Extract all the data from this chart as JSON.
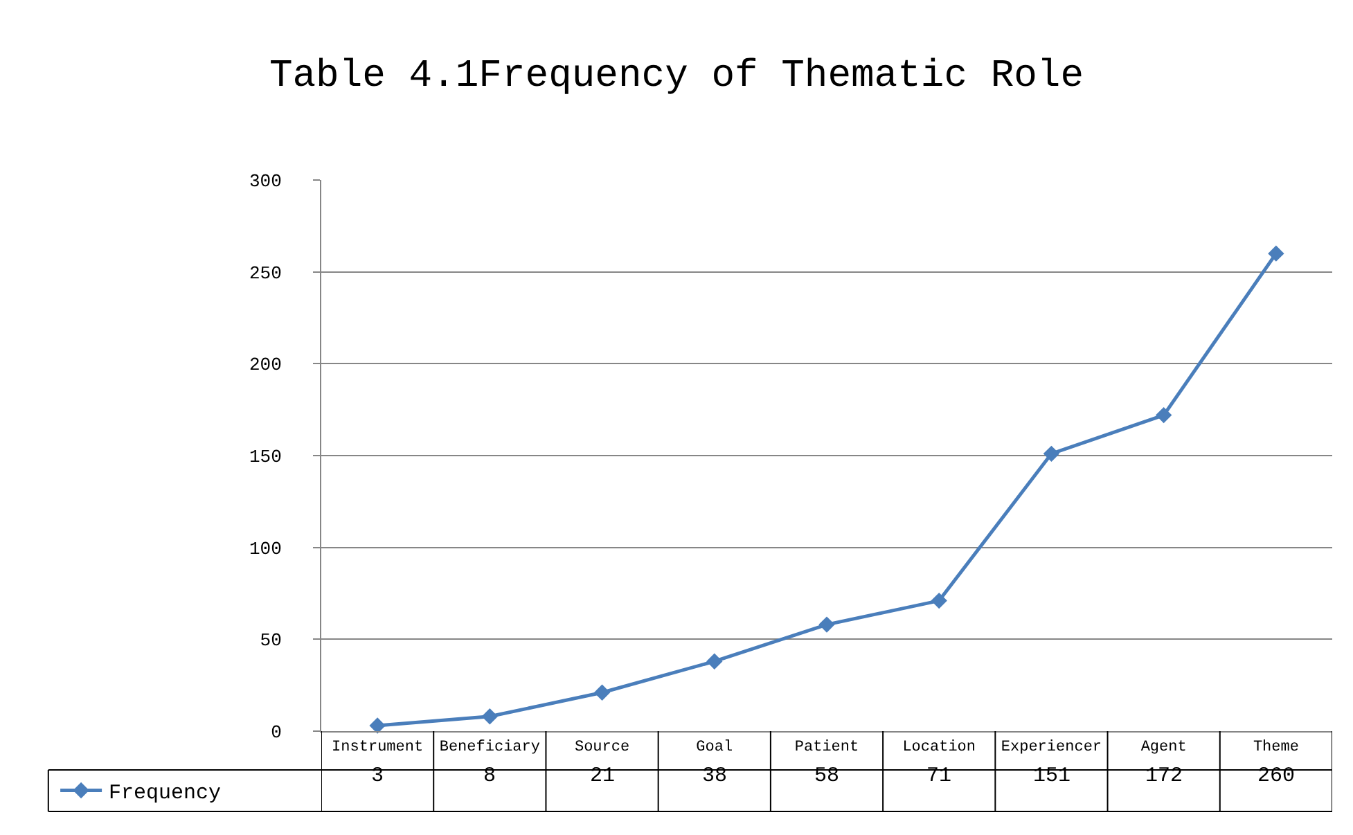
{
  "chart_data": {
    "type": "line",
    "title": "Table 4.1Frequency of Thematic Role",
    "categories": [
      "Instrument",
      "Beneficiary",
      "Source",
      "Goal",
      "Patient",
      "Location",
      "Experiencer",
      "Agent",
      "Theme"
    ],
    "series": [
      {
        "name": "Frequency",
        "color": "#4a7ebb",
        "values": [
          3,
          8,
          21,
          38,
          58,
          71,
          151,
          172,
          260
        ]
      }
    ],
    "ylim": [
      0,
      300
    ],
    "yticks": [
      0,
      50,
      100,
      150,
      200,
      250,
      300
    ],
    "grid": "y",
    "legend": "bottom",
    "marker": "diamond",
    "line_style": "solid",
    "data_labels": true
  }
}
